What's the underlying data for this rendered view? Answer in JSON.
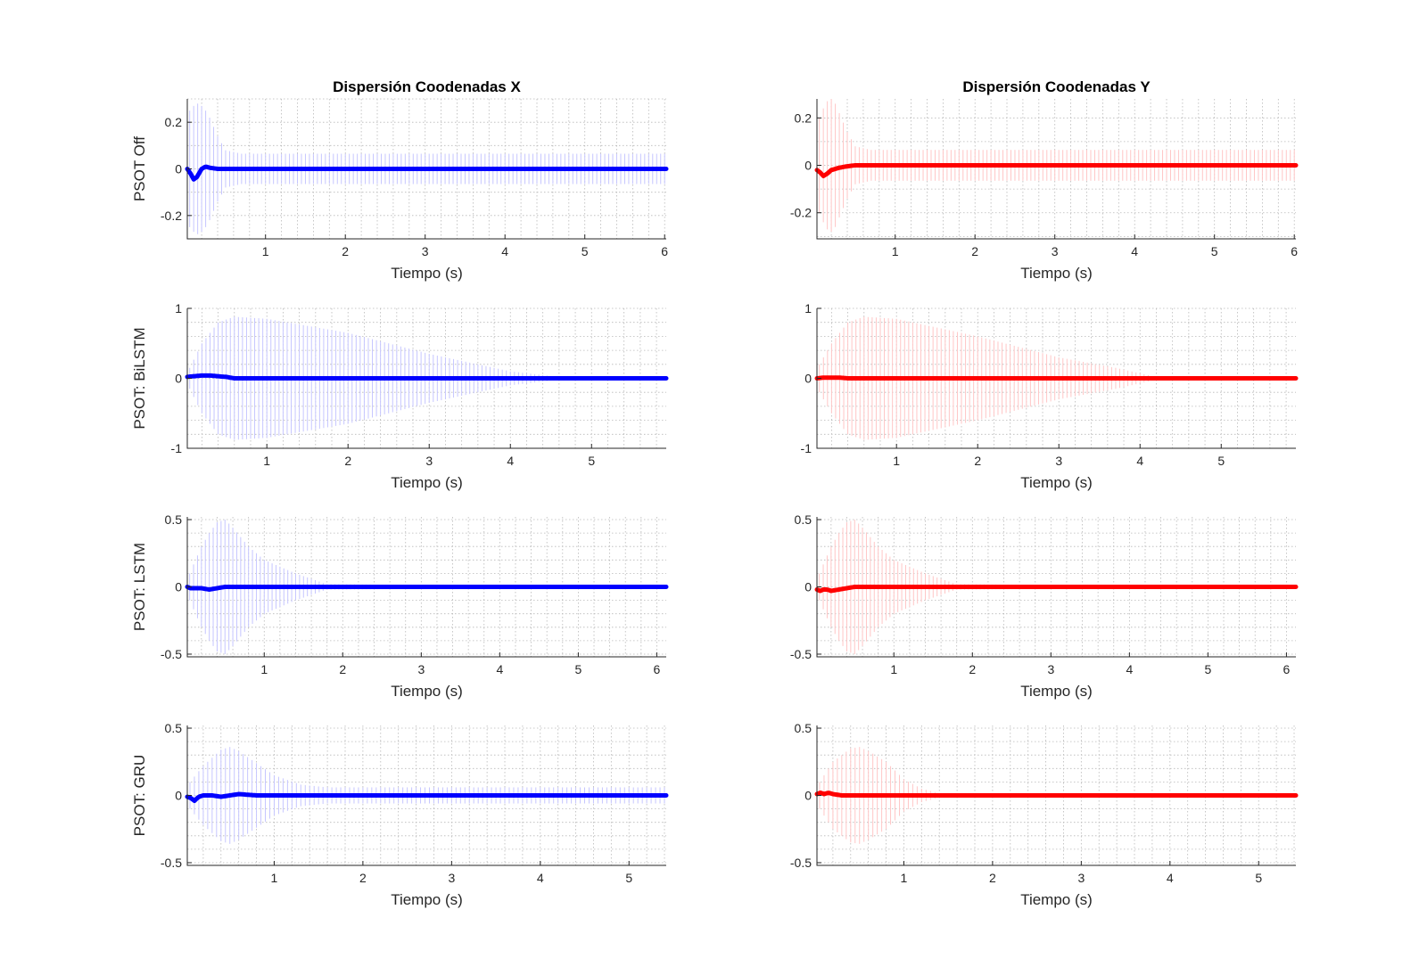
{
  "chart_data": [
    {
      "type": "line",
      "column": "X",
      "title": "Dispersión Coodenadas X",
      "ylabel": "PSOT Off",
      "xlabel": "Tiempo (s)",
      "xlim": [
        0.02,
        6.02
      ],
      "ylim": [
        -0.3,
        0.3
      ],
      "xticks": [
        1,
        2,
        3,
        4,
        5,
        6
      ],
      "yticks": [
        -0.2,
        0,
        0.2
      ],
      "ytick_labels": [
        "-0.2",
        "0",
        "0.2"
      ],
      "color": "#0000ff",
      "mean": {
        "x": [
          0.02,
          0.06,
          0.1,
          0.14,
          0.2,
          0.25,
          0.3,
          0.4,
          6.02
        ],
        "y": [
          0.0,
          -0.02,
          -0.045,
          -0.035,
          0.0,
          0.01,
          0.005,
          0.0,
          0.0
        ]
      },
      "spread": {
        "x_start": 0.05,
        "x_end": 6.02,
        "step": 0.05,
        "envelope": {
          "x": [
            0.05,
            0.1,
            0.15,
            0.2,
            0.25,
            0.3,
            0.35,
            0.4,
            0.5,
            0.7,
            1.0,
            6.02
          ],
          "y": [
            0.25,
            0.27,
            0.28,
            0.27,
            0.25,
            0.22,
            0.18,
            0.14,
            0.08,
            0.065,
            0.065,
            0.065
          ]
        }
      }
    },
    {
      "type": "line",
      "column": "Y",
      "title": "Dispersión Coodenadas Y",
      "ylabel": "",
      "xlabel": "Tiempo (s)",
      "xlim": [
        0.02,
        6.02
      ],
      "ylim": [
        -0.31,
        0.28
      ],
      "xticks": [
        1,
        2,
        3,
        4,
        5,
        6
      ],
      "yticks": [
        -0.2,
        0,
        0.2
      ],
      "ytick_labels": [
        "-0.2",
        "0",
        "0.2"
      ],
      "color": "#ff0000",
      "mean": {
        "x": [
          0.02,
          0.06,
          0.1,
          0.15,
          0.2,
          0.3,
          0.4,
          0.5,
          0.6,
          6.02
        ],
        "y": [
          -0.02,
          -0.03,
          -0.045,
          -0.035,
          -0.02,
          -0.01,
          -0.004,
          0.0,
          0.0,
          0.0
        ]
      },
      "spread": {
        "x_start": 0.05,
        "x_end": 6.02,
        "step": 0.05,
        "envelope": {
          "x": [
            0.05,
            0.1,
            0.15,
            0.2,
            0.25,
            0.3,
            0.35,
            0.4,
            0.5,
            0.7,
            1.0,
            6.02
          ],
          "y": [
            0.2,
            0.24,
            0.27,
            0.28,
            0.26,
            0.22,
            0.18,
            0.14,
            0.08,
            0.065,
            0.065,
            0.065
          ]
        }
      }
    },
    {
      "type": "line",
      "column": "X",
      "title": "",
      "ylabel": "PSOT: BiLSTM",
      "xlabel": "Tiempo (s)",
      "xlim": [
        0.02,
        5.92
      ],
      "ylim": [
        -1,
        1
      ],
      "xticks": [
        1,
        2,
        3,
        4,
        5
      ],
      "yticks": [
        -1,
        0,
        1
      ],
      "ytick_labels": [
        "-1",
        "0",
        "1"
      ],
      "color": "#0000ff",
      "mean": {
        "x": [
          0.02,
          0.1,
          0.2,
          0.3,
          0.4,
          0.5,
          0.6,
          5.92
        ],
        "y": [
          0.02,
          0.03,
          0.04,
          0.04,
          0.03,
          0.02,
          0.0,
          0.0
        ]
      },
      "spread": {
        "x_start": 0.05,
        "x_end": 5.92,
        "step": 0.05,
        "envelope": {
          "x": [
            0.05,
            0.2,
            0.4,
            0.6,
            1.0,
            2.0,
            3.0,
            4.0,
            4.6,
            5.92
          ],
          "y": [
            0.15,
            0.5,
            0.8,
            0.88,
            0.85,
            0.65,
            0.35,
            0.1,
            0.02,
            0.0
          ]
        }
      }
    },
    {
      "type": "line",
      "column": "Y",
      "title": "",
      "ylabel": "",
      "xlabel": "Tiempo (s)",
      "xlim": [
        0.02,
        5.92
      ],
      "ylim": [
        -1,
        1
      ],
      "xticks": [
        1,
        2,
        3,
        4,
        5
      ],
      "yticks": [
        -1,
        0,
        1
      ],
      "ytick_labels": [
        "-1",
        "0",
        "1"
      ],
      "color": "#ff0000",
      "mean": {
        "x": [
          0.02,
          0.1,
          0.2,
          0.3,
          0.4,
          0.5,
          5.92
        ],
        "y": [
          0.0,
          0.01,
          0.01,
          0.01,
          0.0,
          0.0,
          0.0
        ]
      },
      "spread": {
        "x_start": 0.05,
        "x_end": 5.92,
        "step": 0.05,
        "envelope": {
          "x": [
            0.05,
            0.2,
            0.4,
            0.6,
            1.0,
            2.0,
            3.0,
            3.7,
            4.2,
            5.92
          ],
          "y": [
            0.2,
            0.5,
            0.8,
            0.88,
            0.85,
            0.6,
            0.3,
            0.15,
            0.02,
            0.0
          ]
        }
      }
    },
    {
      "type": "line",
      "column": "X",
      "title": "",
      "ylabel": "PSOT: LSTM",
      "xlabel": "Tiempo (s)",
      "xlim": [
        0.02,
        6.12
      ],
      "ylim": [
        -0.52,
        0.52
      ],
      "xticks": [
        1,
        2,
        3,
        4,
        5,
        6
      ],
      "yticks": [
        -0.5,
        0,
        0.5
      ],
      "ytick_labels": [
        "-0.5",
        "0",
        "0.5"
      ],
      "color": "#0000ff",
      "mean": {
        "x": [
          0.02,
          0.06,
          0.1,
          0.2,
          0.3,
          0.4,
          0.5,
          0.6,
          6.12
        ],
        "y": [
          0.0,
          -0.01,
          -0.01,
          -0.01,
          -0.02,
          -0.01,
          0.0,
          0.0,
          0.0
        ]
      },
      "spread": {
        "x_start": 0.05,
        "x_end": 6.12,
        "step": 0.05,
        "envelope": {
          "x": [
            0.05,
            0.2,
            0.3,
            0.4,
            0.5,
            0.6,
            0.8,
            1.0,
            1.4,
            1.8,
            6.12
          ],
          "y": [
            0.1,
            0.3,
            0.4,
            0.48,
            0.5,
            0.44,
            0.3,
            0.2,
            0.1,
            0.02,
            0.0
          ]
        }
      }
    },
    {
      "type": "line",
      "column": "Y",
      "title": "",
      "ylabel": "",
      "xlabel": "Tiempo (s)",
      "xlim": [
        0.02,
        6.12
      ],
      "ylim": [
        -0.52,
        0.52
      ],
      "xticks": [
        1,
        2,
        3,
        4,
        5,
        6
      ],
      "yticks": [
        -0.5,
        0,
        0.5
      ],
      "ytick_labels": [
        "-0.5",
        "0",
        "0.5"
      ],
      "color": "#ff0000",
      "mean": {
        "x": [
          0.02,
          0.06,
          0.1,
          0.15,
          0.2,
          0.3,
          0.4,
          0.5,
          0.6,
          6.12
        ],
        "y": [
          -0.02,
          -0.03,
          -0.02,
          -0.02,
          -0.03,
          -0.02,
          -0.01,
          0.0,
          0.0,
          0.0
        ]
      },
      "spread": {
        "x_start": 0.05,
        "x_end": 6.12,
        "step": 0.05,
        "envelope": {
          "x": [
            0.05,
            0.2,
            0.3,
            0.4,
            0.5,
            0.6,
            0.8,
            1.0,
            1.4,
            1.8,
            6.12
          ],
          "y": [
            0.1,
            0.3,
            0.4,
            0.48,
            0.5,
            0.44,
            0.3,
            0.2,
            0.1,
            0.02,
            0.0
          ]
        }
      }
    },
    {
      "type": "line",
      "column": "X",
      "title": "",
      "ylabel": "PSOT: GRU",
      "xlabel": "Tiempo (s)",
      "xlim": [
        0.02,
        5.42
      ],
      "ylim": [
        -0.52,
        0.52
      ],
      "xticks": [
        1,
        2,
        3,
        4,
        5
      ],
      "yticks": [
        -0.5,
        0,
        0.5
      ],
      "ytick_labels": [
        "-0.5",
        "0",
        "0.5"
      ],
      "color": "#0000ff",
      "mean": {
        "x": [
          0.02,
          0.06,
          0.1,
          0.15,
          0.2,
          0.3,
          0.4,
          0.5,
          0.6,
          0.8,
          5.42
        ],
        "y": [
          -0.01,
          -0.02,
          -0.04,
          -0.01,
          0.0,
          0.0,
          -0.01,
          0.0,
          0.01,
          0.0,
          0.0
        ]
      },
      "spread": {
        "x_start": 0.05,
        "x_end": 5.42,
        "step": 0.05,
        "envelope": {
          "x": [
            0.05,
            0.2,
            0.3,
            0.4,
            0.5,
            0.6,
            0.8,
            1.0,
            1.3,
            1.6,
            5.42
          ],
          "y": [
            0.1,
            0.22,
            0.28,
            0.34,
            0.36,
            0.33,
            0.24,
            0.15,
            0.08,
            0.06,
            0.06
          ]
        }
      }
    },
    {
      "type": "line",
      "column": "Y",
      "title": "",
      "ylabel": "",
      "xlabel": "Tiempo (s)",
      "xlim": [
        0.02,
        5.42
      ],
      "ylim": [
        -0.52,
        0.52
      ],
      "xticks": [
        1,
        2,
        3,
        4,
        5
      ],
      "yticks": [
        -0.5,
        0,
        0.5
      ],
      "ytick_labels": [
        "-0.5",
        "0",
        "0.5"
      ],
      "color": "#ff0000",
      "mean": {
        "x": [
          0.02,
          0.06,
          0.1,
          0.15,
          0.2,
          0.3,
          0.4,
          6.0
        ],
        "y": [
          0.01,
          0.02,
          0.01,
          0.02,
          0.01,
          0.0,
          0.0,
          0.0
        ]
      },
      "spread": {
        "x_start": 0.05,
        "x_end": 5.42,
        "step": 0.05,
        "envelope": {
          "x": [
            0.05,
            0.2,
            0.3,
            0.4,
            0.5,
            0.6,
            0.8,
            1.0,
            1.2,
            1.5,
            5.42
          ],
          "y": [
            0.1,
            0.25,
            0.3,
            0.35,
            0.36,
            0.33,
            0.25,
            0.12,
            0.05,
            0.0,
            0.0
          ]
        }
      }
    }
  ]
}
